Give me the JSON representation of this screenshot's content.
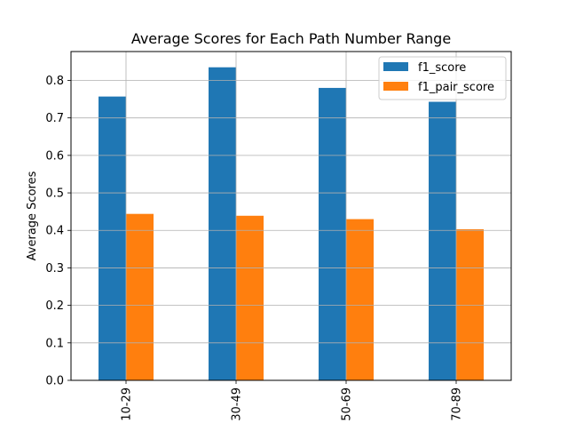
{
  "chart_data": {
    "type": "bar",
    "title": "Average Scores for Each Path Number Range",
    "xlabel": "",
    "ylabel": "Average Scores",
    "categories": [
      "10-29",
      "30-49",
      "50-69",
      "70-89"
    ],
    "series": [
      {
        "name": "f1_score",
        "color": "#1f77b4",
        "values": [
          0.757,
          0.835,
          0.78,
          0.743
        ]
      },
      {
        "name": "f1_pair_score",
        "color": "#ff7f0e",
        "values": [
          0.444,
          0.439,
          0.43,
          0.403
        ]
      }
    ],
    "ylim": [
      0,
      0.877
    ],
    "yticks": [
      0.0,
      0.1,
      0.2,
      0.3,
      0.4,
      0.5,
      0.6,
      0.7,
      0.8
    ],
    "ytick_labels": [
      "0.0",
      "0.1",
      "0.2",
      "0.3",
      "0.4",
      "0.5",
      "0.6",
      "0.7",
      "0.8"
    ],
    "grid": true,
    "legend_position": "top-right",
    "x_tick_rotation": "vertical"
  }
}
